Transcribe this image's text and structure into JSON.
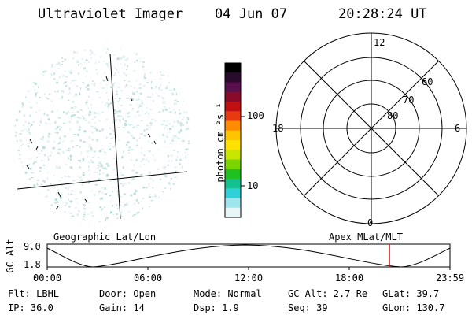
{
  "header": {
    "title": "Ultraviolet Imager",
    "date": "04 Jun 07",
    "time": "20:28:24 UT"
  },
  "colorbar": {
    "unit_label": "photon cm⁻²s⁻¹",
    "ticks": [
      "100",
      "10"
    ],
    "colors": [
      "#000000",
      "#2a0b2e",
      "#5a0f4e",
      "#8a0a2a",
      "#c01010",
      "#e83a10",
      "#ff8c00",
      "#ffc400",
      "#ffe000",
      "#c8e600",
      "#7ad400",
      "#20c020",
      "#14c090",
      "#30d0d8",
      "#9ee6ec",
      "#e8f6f8"
    ]
  },
  "left_panel": {
    "caption": "Geographic Lat/Lon"
  },
  "polar_plot": {
    "caption": "Apex MLat/MLT",
    "mlt_labels": {
      "top": "12",
      "left": "18",
      "right": "6",
      "bottom": "0"
    },
    "lat_labels": [
      "60",
      "70",
      "80"
    ]
  },
  "timeline": {
    "ylabel": "GC Alt",
    "ytick_top": "9.0",
    "ytick_bottom": "1.8",
    "xticks": [
      "00:00",
      "06:00",
      "12:00",
      "18:00",
      "23:59"
    ],
    "current_marker_color": "#d01010"
  },
  "info": {
    "flt": "Flt: LBHL",
    "ip": "IP: 36.0",
    "door": "Door: Open",
    "gain": "Gain: 14",
    "mode": "Mode: Normal",
    "dsp": "Dsp:    1.9",
    "gcalt": "GC Alt: 2.7 Re",
    "seq": "Seq: 39",
    "glat": "GLat:  39.7",
    "glon": "GLon: 130.7"
  }
}
